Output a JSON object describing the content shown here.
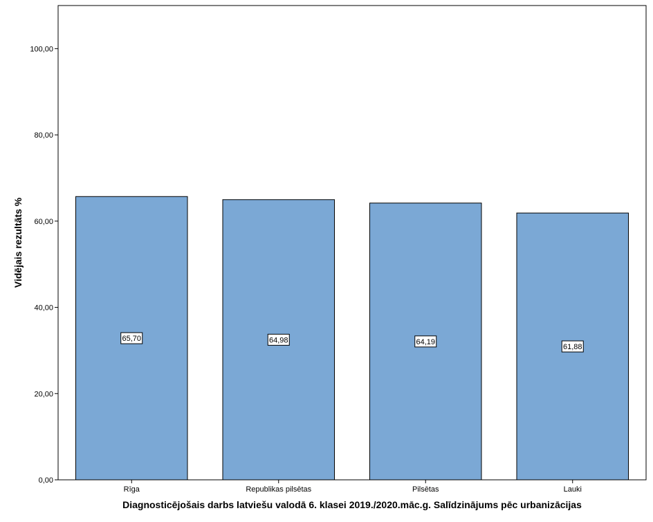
{
  "chart_data": {
    "type": "bar",
    "categories": [
      "Rīga",
      "Republikas pilsētas",
      "Pilsētas",
      "Lauki"
    ],
    "values": [
      65.7,
      64.98,
      64.19,
      61.88
    ],
    "value_labels": [
      "65,70",
      "64,98",
      "64,19",
      "61,88"
    ],
    "title": "",
    "xlabel": "Diagnosticējošais darbs latviešu valodā 6. klasei 2019./2020.māc.g. Salīdzinājums pēc urbanizācijas",
    "ylabel": "Vidējais rezultāts %",
    "ylim": [
      0,
      110
    ],
    "yticks": [
      0,
      20,
      40,
      60,
      80,
      100
    ],
    "ytick_labels": [
      "0,00",
      "20,00",
      "40,00",
      "60,00",
      "80,00",
      "100,00"
    ],
    "bar_color": "#7ba8d5",
    "grid": false,
    "legend": "none"
  }
}
